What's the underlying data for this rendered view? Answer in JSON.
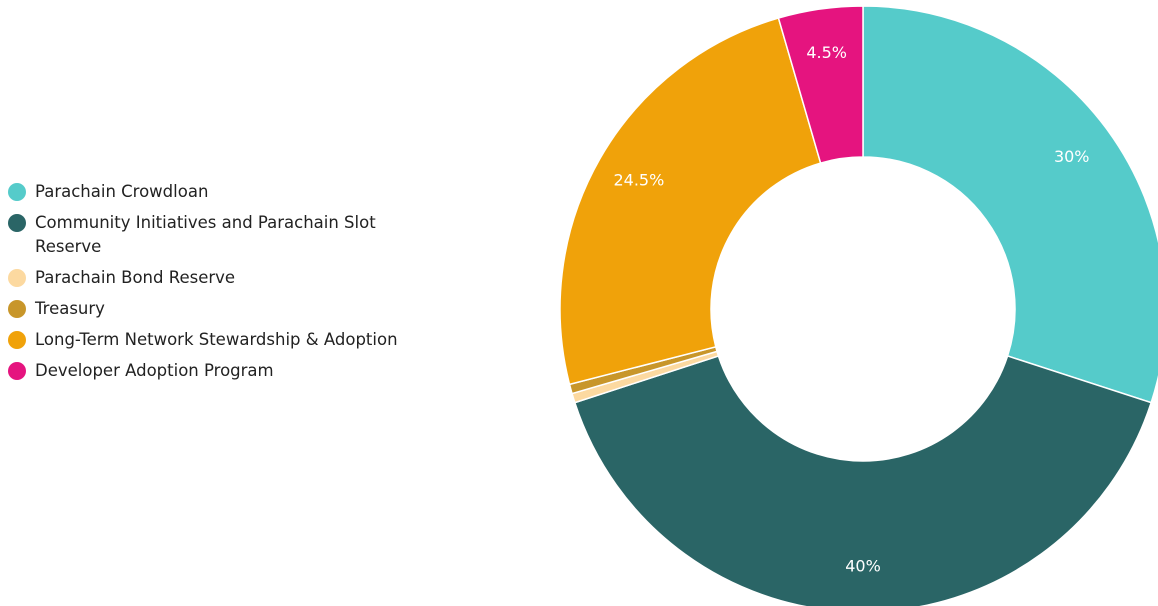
{
  "chart_data": {
    "type": "donut",
    "categories": [
      "Parachain Crowdloan",
      "Community Initiatives and Parachain Slot Reserve",
      "Parachain Bond Reserve",
      "Treasury",
      "Long-Term Network Stewardship & Adoption",
      "Developer Adoption Program"
    ],
    "values": [
      30,
      40,
      0.5,
      0.5,
      24.5,
      4.5
    ],
    "value_labels": [
      "30%",
      "40%",
      null,
      null,
      "24.5%",
      "4.5%"
    ],
    "colors": [
      "#55cbca",
      "#2a6566",
      "#fcd9a0",
      "#c8962a",
      "#f0a20a",
      "#e5147f"
    ],
    "legend": "left"
  }
}
